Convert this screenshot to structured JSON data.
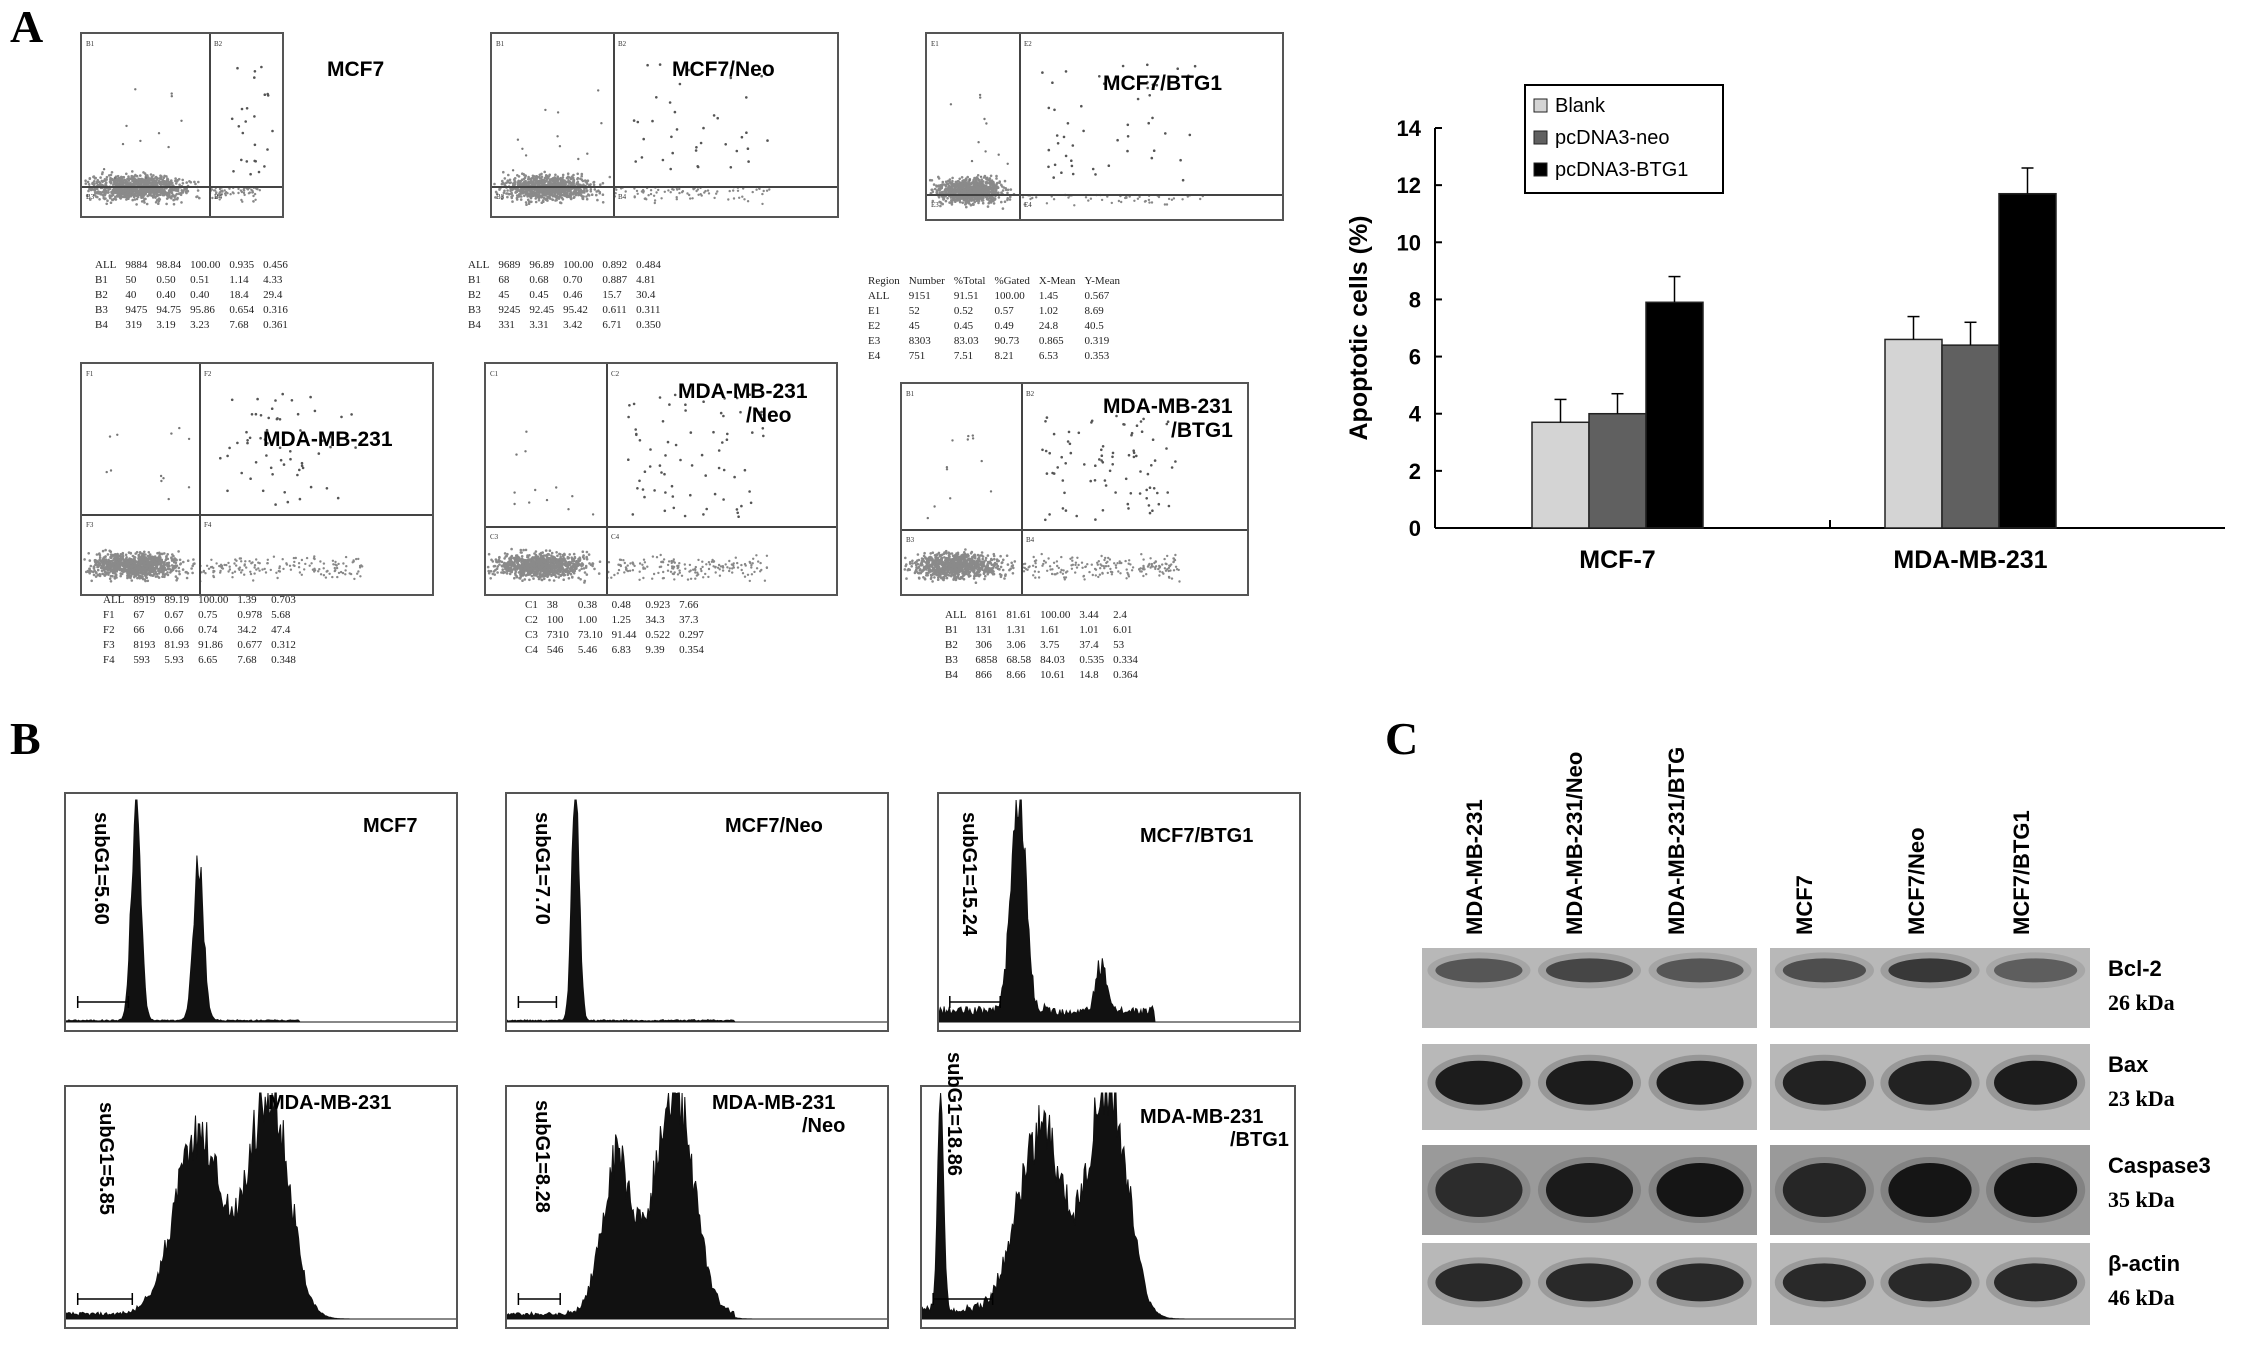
{
  "panels": {
    "a": "A",
    "b": "B",
    "c": "C"
  },
  "flow": [
    {
      "title": [
        "MCF7"
      ],
      "quads": [
        "B1",
        "B2",
        "B3",
        "B4"
      ],
      "rows": [
        [
          "ALL",
          "9884",
          "98.84",
          "100.00",
          "0.935",
          "0.456"
        ],
        [
          "B1",
          "50",
          "0.50",
          "0.51",
          "1.14",
          "4.33"
        ],
        [
          "B2",
          "40",
          "0.40",
          "0.40",
          "18.4",
          "29.4"
        ],
        [
          "B3",
          "9475",
          "94.75",
          "95.86",
          "0.654",
          "0.316"
        ],
        [
          "B4",
          "319",
          "3.19",
          "3.23",
          "7.68",
          "0.361"
        ]
      ]
    },
    {
      "title": [
        "MCF7/Neo"
      ],
      "quads": [
        "B1",
        "B2",
        "B3",
        "B4"
      ],
      "rows": [
        [
          "ALL",
          "9689",
          "96.89",
          "100.00",
          "0.892",
          "0.484"
        ],
        [
          "B1",
          "68",
          "0.68",
          "0.70",
          "0.887",
          "4.81"
        ],
        [
          "B2",
          "45",
          "0.45",
          "0.46",
          "15.7",
          "30.4"
        ],
        [
          "B3",
          "9245",
          "92.45",
          "95.42",
          "0.611",
          "0.311"
        ],
        [
          "B4",
          "331",
          "3.31",
          "3.42",
          "6.71",
          "0.350"
        ]
      ]
    },
    {
      "title": [
        "MCF7/BTG1"
      ],
      "quads": [
        "E1",
        "E2",
        "E3",
        "E4"
      ],
      "rows": [
        [
          "Region",
          "Number",
          "%Total",
          "%Gated",
          "X-Mean",
          "Y-Mean"
        ],
        [
          "ALL",
          "9151",
          "91.51",
          "100.00",
          "1.45",
          "0.567"
        ],
        [
          "E1",
          "52",
          "0.52",
          "0.57",
          "1.02",
          "8.69"
        ],
        [
          "E2",
          "45",
          "0.45",
          "0.49",
          "24.8",
          "40.5"
        ],
        [
          "E3",
          "8303",
          "83.03",
          "90.73",
          "0.865",
          "0.319"
        ],
        [
          "E4",
          "751",
          "7.51",
          "8.21",
          "6.53",
          "0.353"
        ]
      ]
    },
    {
      "title": [
        "MDA-MB-231"
      ],
      "quads": [
        "F1",
        "F2",
        "F3",
        "F4"
      ],
      "rows": [
        [
          "ALL",
          "8919",
          "89.19",
          "100.00",
          "1.39",
          "0.703"
        ],
        [
          "F1",
          "67",
          "0.67",
          "0.75",
          "0.978",
          "5.68"
        ],
        [
          "F2",
          "66",
          "0.66",
          "0.74",
          "34.2",
          "47.4"
        ],
        [
          "F3",
          "8193",
          "81.93",
          "91.86",
          "0.677",
          "0.312"
        ],
        [
          "F4",
          "593",
          "5.93",
          "6.65",
          "7.68",
          "0.348"
        ]
      ]
    },
    {
      "title": [
        "MDA-MB-231",
        "/Neo"
      ],
      "quads": [
        "C1",
        "C2",
        "C3",
        "C4"
      ],
      "rows": [
        [
          "C1",
          "38",
          "0.38",
          "0.48",
          "0.923",
          "7.66"
        ],
        [
          "C2",
          "100",
          "1.00",
          "1.25",
          "34.3",
          "37.3"
        ],
        [
          "C3",
          "7310",
          "73.10",
          "91.44",
          "0.522",
          "0.297"
        ],
        [
          "C4",
          "546",
          "5.46",
          "6.83",
          "9.39",
          "0.354"
        ]
      ]
    },
    {
      "title": [
        "MDA-MB-231",
        "/BTG1"
      ],
      "quads": [
        "B1",
        "B2",
        "B3",
        "B4"
      ],
      "rows": [
        [
          "ALL",
          "8161",
          "81.61",
          "100.00",
          "3.44",
          "2.4"
        ],
        [
          "B1",
          "131",
          "1.31",
          "1.61",
          "1.01",
          "6.01"
        ],
        [
          "B2",
          "306",
          "3.06",
          "3.75",
          "37.4",
          "53"
        ],
        [
          "B3",
          "6858",
          "68.58",
          "84.03",
          "0.535",
          "0.334"
        ],
        [
          "B4",
          "866",
          "8.66",
          "10.61",
          "14.8",
          "0.364"
        ]
      ]
    }
  ],
  "hist": [
    {
      "title": [
        "MCF7"
      ],
      "subg": "subG1=5.60"
    },
    {
      "title": [
        "MCF7/Neo"
      ],
      "subg": "subG1=7.70"
    },
    {
      "title": [
        "MCF7/BTG1"
      ],
      "subg": "subG1=15.24"
    },
    {
      "title": [
        "MDA-MB-231"
      ],
      "subg": "subG1=5.85"
    },
    {
      "title": [
        "MDA-MB-231",
        "/Neo"
      ],
      "subg": "subG1=8.28"
    },
    {
      "title": [
        "MDA-MB-231",
        "/BTG1"
      ],
      "subg": "subG1=18.86"
    }
  ],
  "chart_data": {
    "type": "bar",
    "categories": [
      "MCF-7",
      "MDA-MB-231"
    ],
    "series": [
      {
        "name": "Blank",
        "values": [
          3.7,
          6.6
        ],
        "errors": [
          0.8,
          0.8
        ],
        "color": "#d4d4d4"
      },
      {
        "name": "pcDNA3-neo",
        "values": [
          4.0,
          6.4
        ],
        "errors": [
          0.7,
          0.8
        ],
        "color": "#606060"
      },
      {
        "name": "pcDNA3-BTG1",
        "values": [
          7.9,
          11.7
        ],
        "errors": [
          0.9,
          0.9
        ],
        "color": "#000000"
      }
    ],
    "ylabel": "Apoptotic cells (%)",
    "ylim": [
      0,
      14
    ],
    "yticks": [
      0,
      2,
      4,
      6,
      8,
      10,
      12,
      14
    ],
    "legend": "top-left"
  },
  "blot": {
    "lanes": [
      "MDA-MB-231",
      "MDA-MB-231/Neo",
      "MDA-MB-231/BTG",
      "MCF7",
      "MCF7/Neo",
      "MCF7/BTG1"
    ],
    "proteins": [
      {
        "name": "Bcl-2",
        "kda": "26 kDa"
      },
      {
        "name": "Bax",
        "kda": "23 kDa"
      },
      {
        "name": "Caspase3",
        "kda": "35 kDa"
      },
      {
        "name": "β-actin",
        "kda": "46 kDa"
      }
    ]
  }
}
